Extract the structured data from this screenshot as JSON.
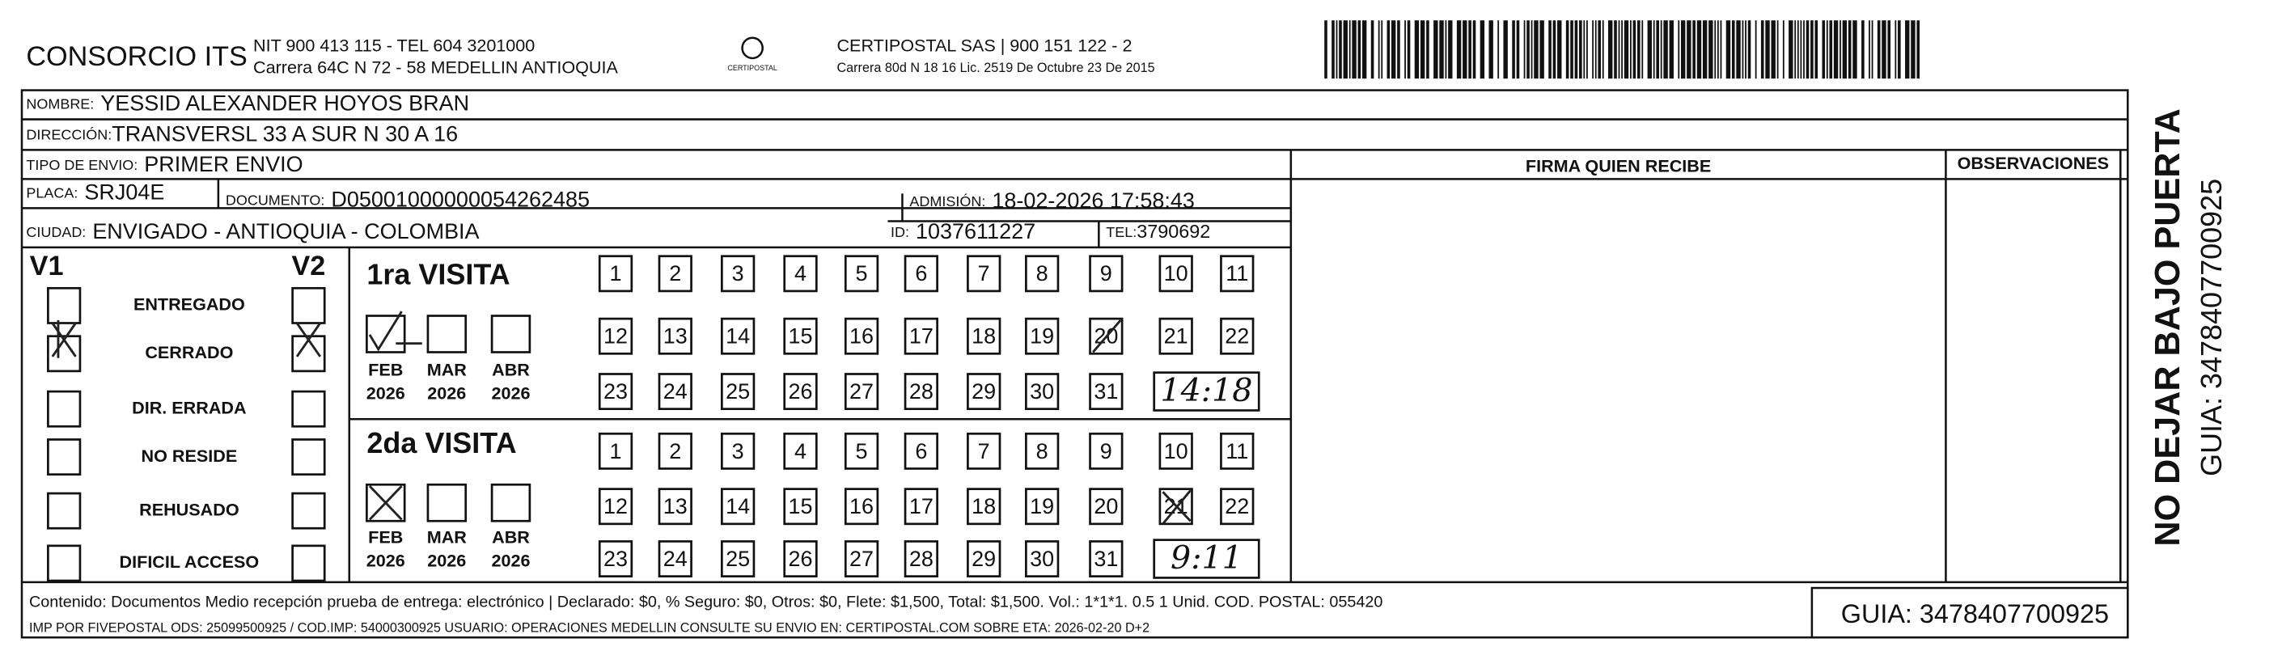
{
  "header": {
    "company": "CONSORCIO ITS",
    "nit": "NIT 900 413 115 - TEL 604 3201000",
    "address": "Carrera 64C N 72 - 58 MEDELLIN ANTIOQUIA",
    "logo_text": "CERTIPOSTAL",
    "carrier": "CERTIPOSTAL SAS | 900 151 122 - 2",
    "carrier_address": "Carrera 80d N 18 16  Lic. 2519 De Octubre 23 De 2015"
  },
  "recipient": {
    "name_label": "NOMBRE:",
    "name": "YESSID ALEXANDER HOYOS BRAN",
    "address_label": "DIRECCIÓN:",
    "address": "TRANSVERSL 33 A SUR N 30 A 16",
    "shipment_type_label": "TIPO DE ENVIO:",
    "shipment_type": "PRIMER ENVIO",
    "plate_label": "PLACA:",
    "plate": "SRJ04E",
    "document_label": "DOCUMENTO:",
    "document": "D05001000000054262485",
    "admission_label": "ADMISIÓN:",
    "admission": "18-02-2026 17:58:43",
    "city_label": "CIUDAD:",
    "city": "ENVIGADO - ANTIOQUIA - COLOMBIA",
    "id_label": "ID:",
    "id": "1037611227",
    "tel_label": "TEL:",
    "tel": "3790692"
  },
  "signature_header": "FIRMA QUIEN RECIBE",
  "observations_header": "OBSERVACIONES",
  "status": {
    "v1": "V1",
    "v2": "V2",
    "options": [
      "ENTREGADO",
      "CERRADO",
      "DIR. ERRADA",
      "NO RESIDE",
      "REHUSADO",
      "DIFICIL ACCESO"
    ]
  },
  "visits": [
    {
      "title": "1ra VISITA",
      "months": [
        {
          "month": "FEB",
          "year": "2026"
        },
        {
          "month": "MAR",
          "year": "2026"
        },
        {
          "month": "ABR",
          "year": "2026"
        }
      ],
      "time": "14:18"
    },
    {
      "title": "2da VISITA",
      "months": [
        {
          "month": "FEB",
          "year": "2026"
        },
        {
          "month": "MAR",
          "year": "2026"
        },
        {
          "month": "ABR",
          "year": "2026"
        }
      ],
      "time": "9:11"
    }
  ],
  "days": [
    1,
    2,
    3,
    4,
    5,
    6,
    7,
    8,
    9,
    10,
    11,
    12,
    13,
    14,
    15,
    16,
    17,
    18,
    19,
    20,
    21,
    22,
    23,
    24,
    25,
    26,
    27,
    28,
    29,
    30,
    31
  ],
  "footer": {
    "contents": "Contenido: Documentos Medio recepción prueba de entrega: electrónico | Declarado: $0, % Seguro: $0, Otros: $0, Flete: $1,500, Total: $1,500. Vol.: 1*1*1. 0.5  1 Unid. COD. POSTAL: 055420",
    "imprint": "IMP POR FIVEPOSTAL ODS: 25099500925 / COD.IMP: 54000300925 USUARIO: OPERACIONES MEDELLIN CONSULTE SU ENVIO EN: CERTIPOSTAL.COM SOBRE ETA: 2026-02-20 D+2",
    "guide": "GUIA: 3478407700925"
  },
  "side": {
    "warning": "NO DEJAR BAJO PUERTA",
    "guide": "GUIA: 3478407700925"
  }
}
